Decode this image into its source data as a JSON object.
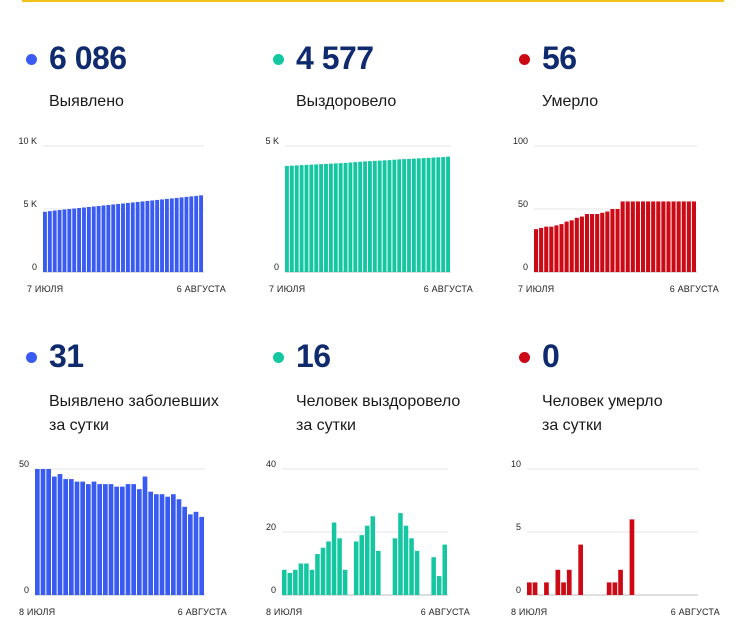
{
  "colors": {
    "blue": "#3a5bf2",
    "green": "#14c7a0",
    "red": "#cc0a16",
    "accent": "#f2c21b"
  },
  "cards": [
    {
      "key": "confirmed",
      "value": "6 086",
      "label": "Выявлено",
      "color": "blue"
    },
    {
      "key": "recovered",
      "value": "4 577",
      "label": "Выздоровело",
      "color": "green"
    },
    {
      "key": "deaths",
      "value": "56",
      "label": "Умерло",
      "color": "red"
    },
    {
      "key": "confirmed_daily",
      "value": "31",
      "label": "Выявлено заболевших\nза сутки",
      "color": "blue"
    },
    {
      "key": "recovered_daily",
      "value": "16",
      "label": "Человек выздоровело\nза сутки",
      "color": "green"
    },
    {
      "key": "deaths_daily",
      "value": "0",
      "label": "Человек умерло\nза сутки",
      "color": "red"
    }
  ],
  "chart_data": [
    {
      "type": "bar",
      "color": "blue",
      "yticks": [
        {
          "value": 0,
          "label": "0"
        },
        {
          "value": 5000,
          "label": "5 K"
        },
        {
          "value": 10000,
          "label": "10 K"
        }
      ],
      "ylim": [
        0,
        10000
      ],
      "xlabels": [
        "7 ИЮЛЯ",
        "6 АВГУСТА"
      ],
      "values": [
        4780,
        4830,
        4880,
        4920,
        4960,
        5000,
        5040,
        5080,
        5120,
        5160,
        5200,
        5240,
        5280,
        5320,
        5360,
        5400,
        5440,
        5480,
        5520,
        5560,
        5600,
        5640,
        5680,
        5720,
        5760,
        5800,
        5840,
        5880,
        5920,
        5960,
        6000,
        6040,
        6086
      ]
    },
    {
      "type": "bar",
      "color": "green",
      "yticks": [
        {
          "value": 0,
          "label": "0"
        },
        {
          "value": 5000,
          "label": "5 K"
        }
      ],
      "ylim": [
        0,
        5000
      ],
      "xlabels": [
        "7 ИЮЛЯ",
        "6 АВГУСТА"
      ],
      "values": [
        4210,
        4220,
        4230,
        4240,
        4250,
        4260,
        4270,
        4280,
        4290,
        4300,
        4310,
        4320,
        4330,
        4345,
        4360,
        4375,
        4390,
        4400,
        4410,
        4420,
        4430,
        4440,
        4455,
        4470,
        4480,
        4490,
        4500,
        4510,
        4520,
        4530,
        4540,
        4550,
        4561,
        4577
      ]
    },
    {
      "type": "bar",
      "color": "red",
      "yticks": [
        {
          "value": 0,
          "label": "0"
        },
        {
          "value": 50,
          "label": "50"
        },
        {
          "value": 100,
          "label": "100"
        }
      ],
      "ylim": [
        0,
        100
      ],
      "xlabels": [
        "7 ИЮЛЯ",
        "6 АВГУСТА"
      ],
      "values": [
        34,
        35,
        36,
        36,
        37,
        38,
        40,
        41,
        43,
        44,
        46,
        46,
        46,
        47,
        48,
        50,
        50,
        56,
        56,
        56,
        56,
        56,
        56,
        56,
        56,
        56,
        56,
        56,
        56,
        56,
        56,
        56
      ]
    },
    {
      "type": "bar",
      "color": "blue",
      "yticks": [
        {
          "value": 0,
          "label": "0"
        },
        {
          "value": 50,
          "label": "50"
        }
      ],
      "ylim": [
        0,
        50
      ],
      "xlabels": [
        "8 ИЮЛЯ",
        "6 АВГУСТА"
      ],
      "values": [
        50,
        50,
        50,
        47,
        48,
        46,
        46,
        45,
        45,
        44,
        45,
        44,
        44,
        44,
        43,
        43,
        44,
        44,
        42,
        47,
        41,
        40,
        40,
        39,
        40,
        38,
        35,
        32,
        33,
        31
      ]
    },
    {
      "type": "bar",
      "color": "green",
      "yticks": [
        {
          "value": 0,
          "label": "0"
        },
        {
          "value": 20,
          "label": "20"
        },
        {
          "value": 40,
          "label": "40"
        }
      ],
      "ylim": [
        0,
        40
      ],
      "xlabels": [
        "8 ИЮЛЯ",
        "6 АВГУСТА"
      ],
      "values": [
        8,
        7,
        8,
        10,
        10,
        8,
        13,
        15,
        17,
        23,
        18,
        8,
        0,
        17,
        19,
        22,
        25,
        14,
        0,
        0,
        18,
        26,
        22,
        18,
        14,
        0,
        0,
        12,
        6,
        16
      ]
    },
    {
      "type": "bar",
      "color": "red",
      "yticks": [
        {
          "value": 0,
          "label": "0"
        },
        {
          "value": 5,
          "label": "5"
        },
        {
          "value": 10,
          "label": "10"
        }
      ],
      "ylim": [
        0,
        10
      ],
      "xlabels": [
        "8 ИЮЛЯ",
        "6 АВГУСТА"
      ],
      "values": [
        1,
        1,
        0,
        1,
        0,
        2,
        1,
        2,
        0,
        4,
        0,
        0,
        0,
        0,
        1,
        1,
        2,
        0,
        6,
        0,
        0,
        0,
        0,
        0,
        0,
        0,
        0,
        0,
        0,
        0
      ]
    }
  ]
}
